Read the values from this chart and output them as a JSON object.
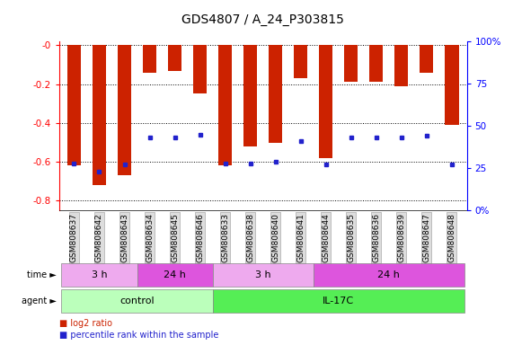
{
  "title": "GDS4807 / A_24_P303815",
  "samples": [
    "GSM808637",
    "GSM808642",
    "GSM808643",
    "GSM808634",
    "GSM808645",
    "GSM808646",
    "GSM808633",
    "GSM808638",
    "GSM808640",
    "GSM808641",
    "GSM808644",
    "GSM808635",
    "GSM808636",
    "GSM808639",
    "GSM808647",
    "GSM808648"
  ],
  "log2_ratio": [
    -0.62,
    -0.72,
    -0.67,
    -0.14,
    -0.13,
    -0.25,
    -0.62,
    -0.52,
    -0.5,
    -0.17,
    -0.58,
    -0.19,
    -0.19,
    -0.21,
    -0.14,
    -0.41
  ],
  "percentile_rank": [
    28,
    23,
    27,
    43,
    43,
    45,
    28,
    28,
    29,
    41,
    27,
    43,
    43,
    43,
    44,
    27
  ],
  "bar_color": "#cc2200",
  "dot_color": "#2222cc",
  "ylim_left": [
    -0.85,
    0.02
  ],
  "ylim_right": [
    0,
    100
  ],
  "yticks_left": [
    0.0,
    -0.2,
    -0.4,
    -0.6,
    -0.8
  ],
  "yticks_right": [
    0,
    25,
    50,
    75,
    100
  ],
  "agent_groups": [
    {
      "label": "control",
      "start": 0,
      "end": 6,
      "color": "#bbffbb"
    },
    {
      "label": "IL-17C",
      "start": 6,
      "end": 16,
      "color": "#55ee55"
    }
  ],
  "time_groups": [
    {
      "label": "3 h",
      "start": 0,
      "end": 3,
      "color": "#eeaaee"
    },
    {
      "label": "24 h",
      "start": 3,
      "end": 6,
      "color": "#dd55dd"
    },
    {
      "label": "3 h",
      "start": 6,
      "end": 10,
      "color": "#eeaaee"
    },
    {
      "label": "24 h",
      "start": 10,
      "end": 16,
      "color": "#dd55dd"
    }
  ],
  "legend_labels": [
    "log2 ratio",
    "percentile rank within the sample"
  ],
  "legend_colors": [
    "#cc2200",
    "#2222cc"
  ],
  "bar_width": 0.55,
  "title_fontsize": 10
}
